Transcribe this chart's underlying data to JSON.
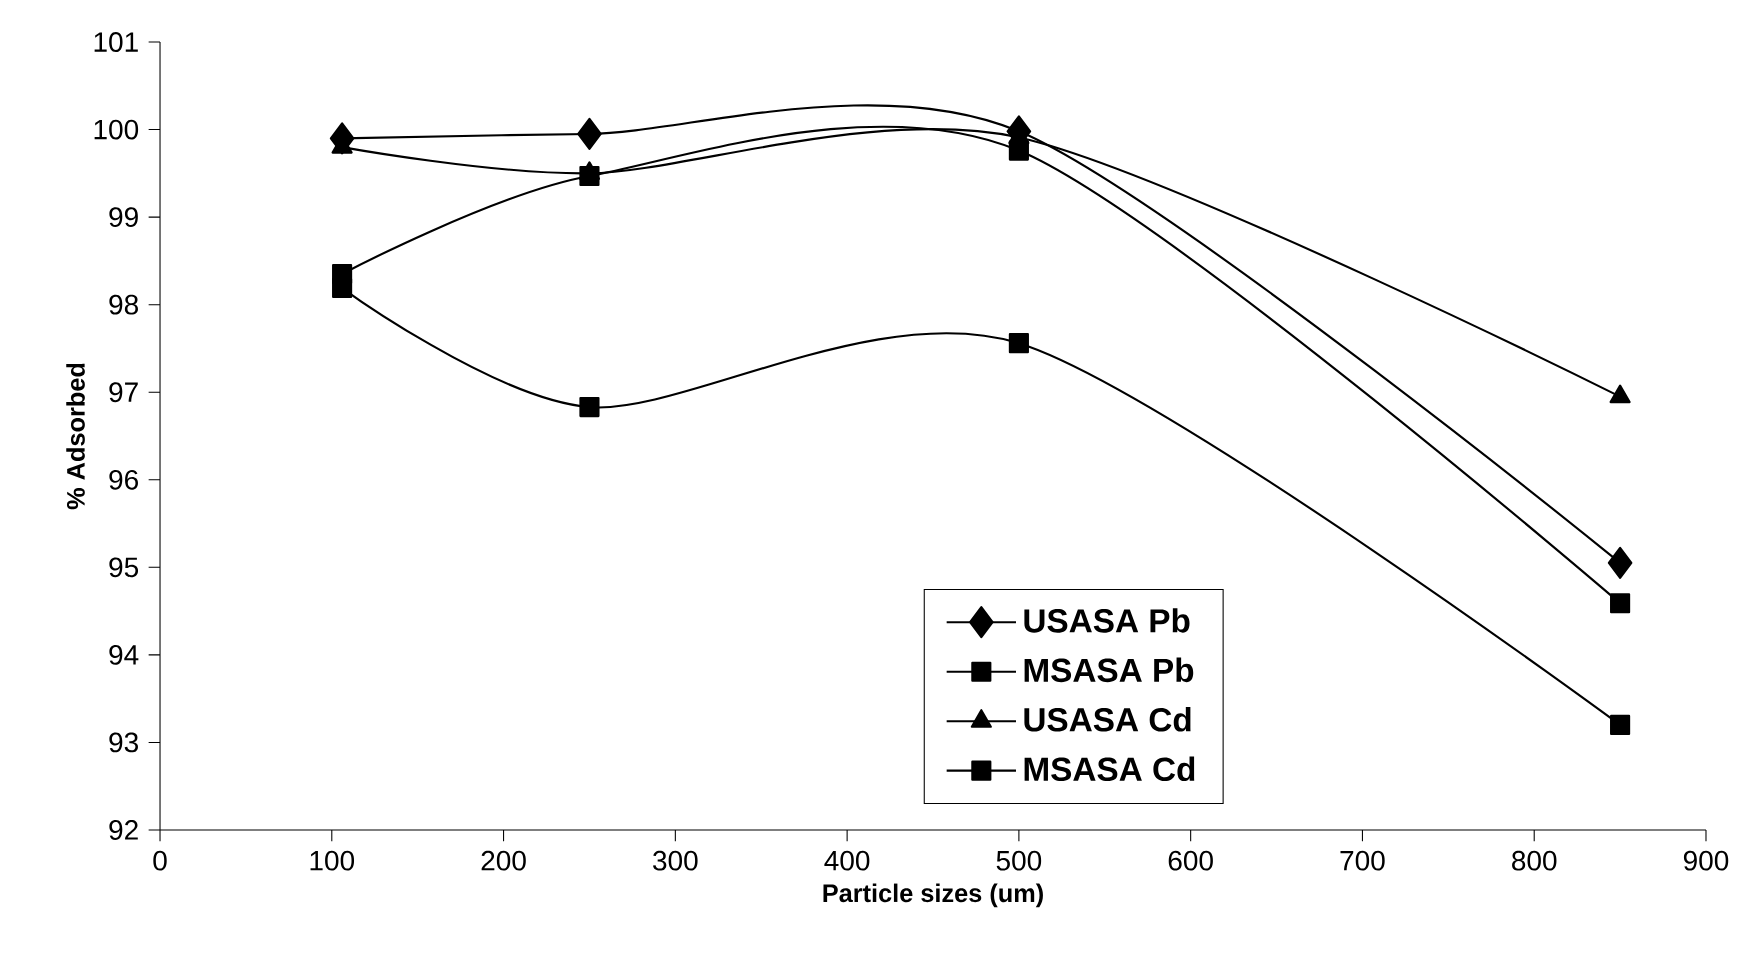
{
  "chart_data": {
    "type": "line",
    "xlabel": "Particle sizes (um)",
    "ylabel": "% Adsorbed",
    "x": [
      106,
      250,
      500,
      850
    ],
    "series": [
      {
        "name": "USASA Pb",
        "color": "#000000",
        "marker": "diamond",
        "values": [
          99.9,
          99.95,
          99.98,
          95.05
        ]
      },
      {
        "name": "MSASA Pb",
        "color": "#000000",
        "marker": "square",
        "values": [
          98.35,
          99.47,
          99.76,
          94.59
        ]
      },
      {
        "name": "USASA Cd",
        "color": "#000000",
        "marker": "triangle",
        "values": [
          99.8,
          99.5,
          99.91,
          96.95
        ]
      },
      {
        "name": "MSASA Cd",
        "color": "#000000",
        "marker": "square",
        "values": [
          98.19,
          96.83,
          97.56,
          93.2
        ]
      }
    ],
    "xlim": [
      0,
      900
    ],
    "xticks": [
      0,
      100,
      200,
      300,
      400,
      500,
      600,
      700,
      800,
      900
    ],
    "ylim": [
      92,
      101
    ],
    "yticks": [
      92,
      93,
      94,
      95,
      96,
      97,
      98,
      99,
      100,
      101
    ],
    "legend": "bottom",
    "grid": false,
    "line_style": "solid"
  }
}
